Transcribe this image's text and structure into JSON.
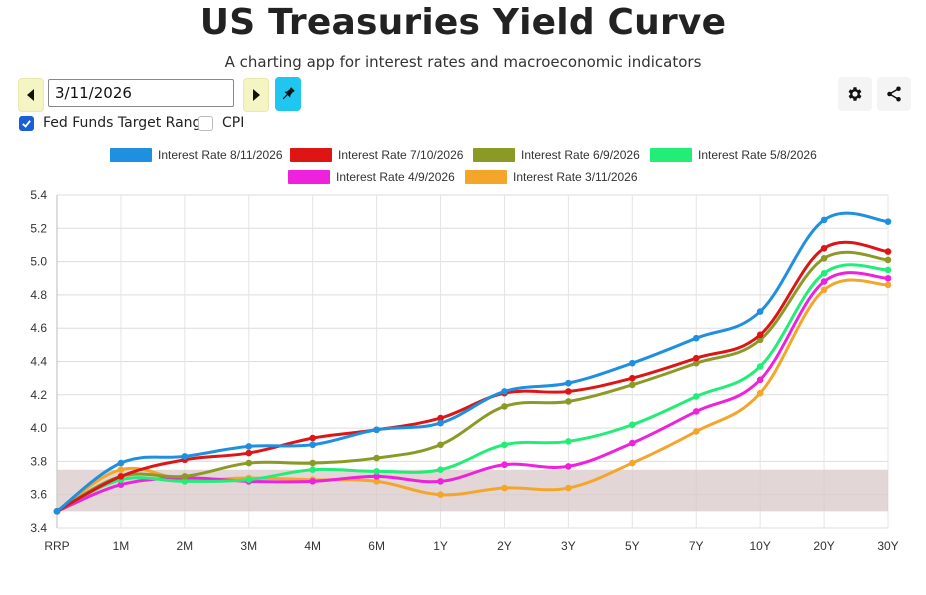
{
  "header": {
    "title": "US Treasuries Yield Curve",
    "subtitle": "A charting app for interest rates and macroeconomic indicators"
  },
  "controls": {
    "date_value": "3/11/2026",
    "prev_icon": "caret-left-icon",
    "next_icon": "caret-right-icon",
    "pin_icon": "pushpin-icon",
    "settings_icon": "gear-icon",
    "share_icon": "share-icon",
    "checkboxes": [
      {
        "label": "Fed Funds Target Range",
        "checked": true
      },
      {
        "label": "CPI",
        "checked": false
      }
    ]
  },
  "colors": {
    "accent": "#1ec6f0",
    "nav_bg": "#f5f5c4",
    "checkbox": "#1a5fd6",
    "fed_band": "#d8c8c8"
  },
  "chart_data": {
    "type": "line",
    "categories": [
      "RRP",
      "1M",
      "2M",
      "3M",
      "4M",
      "6M",
      "1Y",
      "2Y",
      "3Y",
      "5Y",
      "7Y",
      "10Y",
      "20Y",
      "30Y"
    ],
    "ylim": [
      3.4,
      5.4
    ],
    "yticks": [
      "3.4",
      "3.6",
      "3.8",
      "4.0",
      "4.2",
      "4.4",
      "4.6",
      "4.8",
      "5.0",
      "5.2",
      "5.4"
    ],
    "grid": true,
    "legend_position": "top",
    "fed_funds_band": [
      3.5,
      3.75
    ],
    "series": [
      {
        "name": "Interest Rate 8/11/2026",
        "color": "#1f8fe0",
        "values": [
          3.5,
          3.79,
          3.83,
          3.89,
          3.9,
          3.99,
          4.03,
          4.22,
          4.27,
          4.39,
          4.54,
          4.7,
          5.25,
          5.24
        ]
      },
      {
        "name": "Interest Rate 7/10/2026",
        "color": "#dd1515",
        "values": [
          3.5,
          3.71,
          3.81,
          3.85,
          3.94,
          3.99,
          4.06,
          4.21,
          4.22,
          4.3,
          4.42,
          4.56,
          5.08,
          5.06
        ]
      },
      {
        "name": "Interest Rate 6/9/2026",
        "color": "#8a9a25",
        "values": [
          3.5,
          3.71,
          3.71,
          3.79,
          3.79,
          3.82,
          3.9,
          4.13,
          4.16,
          4.26,
          4.39,
          4.53,
          5.02,
          5.01
        ]
      },
      {
        "name": "Interest Rate 5/8/2026",
        "color": "#22ee77",
        "values": [
          3.5,
          3.69,
          3.68,
          3.69,
          3.75,
          3.74,
          3.75,
          3.9,
          3.92,
          4.02,
          4.19,
          4.37,
          4.93,
          4.95
        ]
      },
      {
        "name": "Interest Rate 4/9/2026",
        "color": "#ee22dd",
        "values": [
          3.5,
          3.66,
          3.7,
          3.68,
          3.68,
          3.71,
          3.68,
          3.78,
          3.77,
          3.91,
          4.1,
          4.29,
          4.88,
          4.9
        ]
      },
      {
        "name": "Interest Rate 3/11/2026",
        "color": "#f4a62a",
        "values": [
          3.5,
          3.75,
          3.69,
          3.7,
          3.69,
          3.68,
          3.6,
          3.64,
          3.64,
          3.79,
          3.98,
          4.21,
          4.83,
          4.86
        ]
      }
    ]
  }
}
